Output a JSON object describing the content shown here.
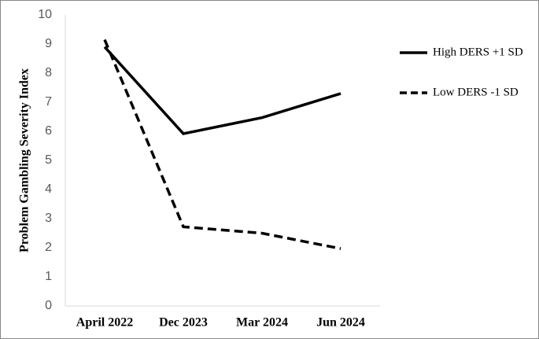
{
  "chart_data": {
    "type": "line",
    "y_label": "Problem Gambling Severity Index",
    "categories": [
      "April 2022",
      "Dec 2023",
      "Mar 2024",
      "Jun 2024"
    ],
    "series": [
      {
        "name": "High DERS +1 SD",
        "color": "#000000",
        "dash": "solid",
        "values": [
          8.9,
          5.92,
          6.47,
          7.3
        ]
      },
      {
        "name": "Low DERS -1 SD",
        "color": "#000000",
        "dash": "dashed",
        "values": [
          9.15,
          2.72,
          2.5,
          1.97
        ]
      }
    ],
    "ylim": [
      0,
      10
    ],
    "yticks": [
      0,
      1,
      2,
      3,
      4,
      5,
      6,
      7,
      8,
      9,
      10
    ],
    "grid": false,
    "legend": "right"
  }
}
